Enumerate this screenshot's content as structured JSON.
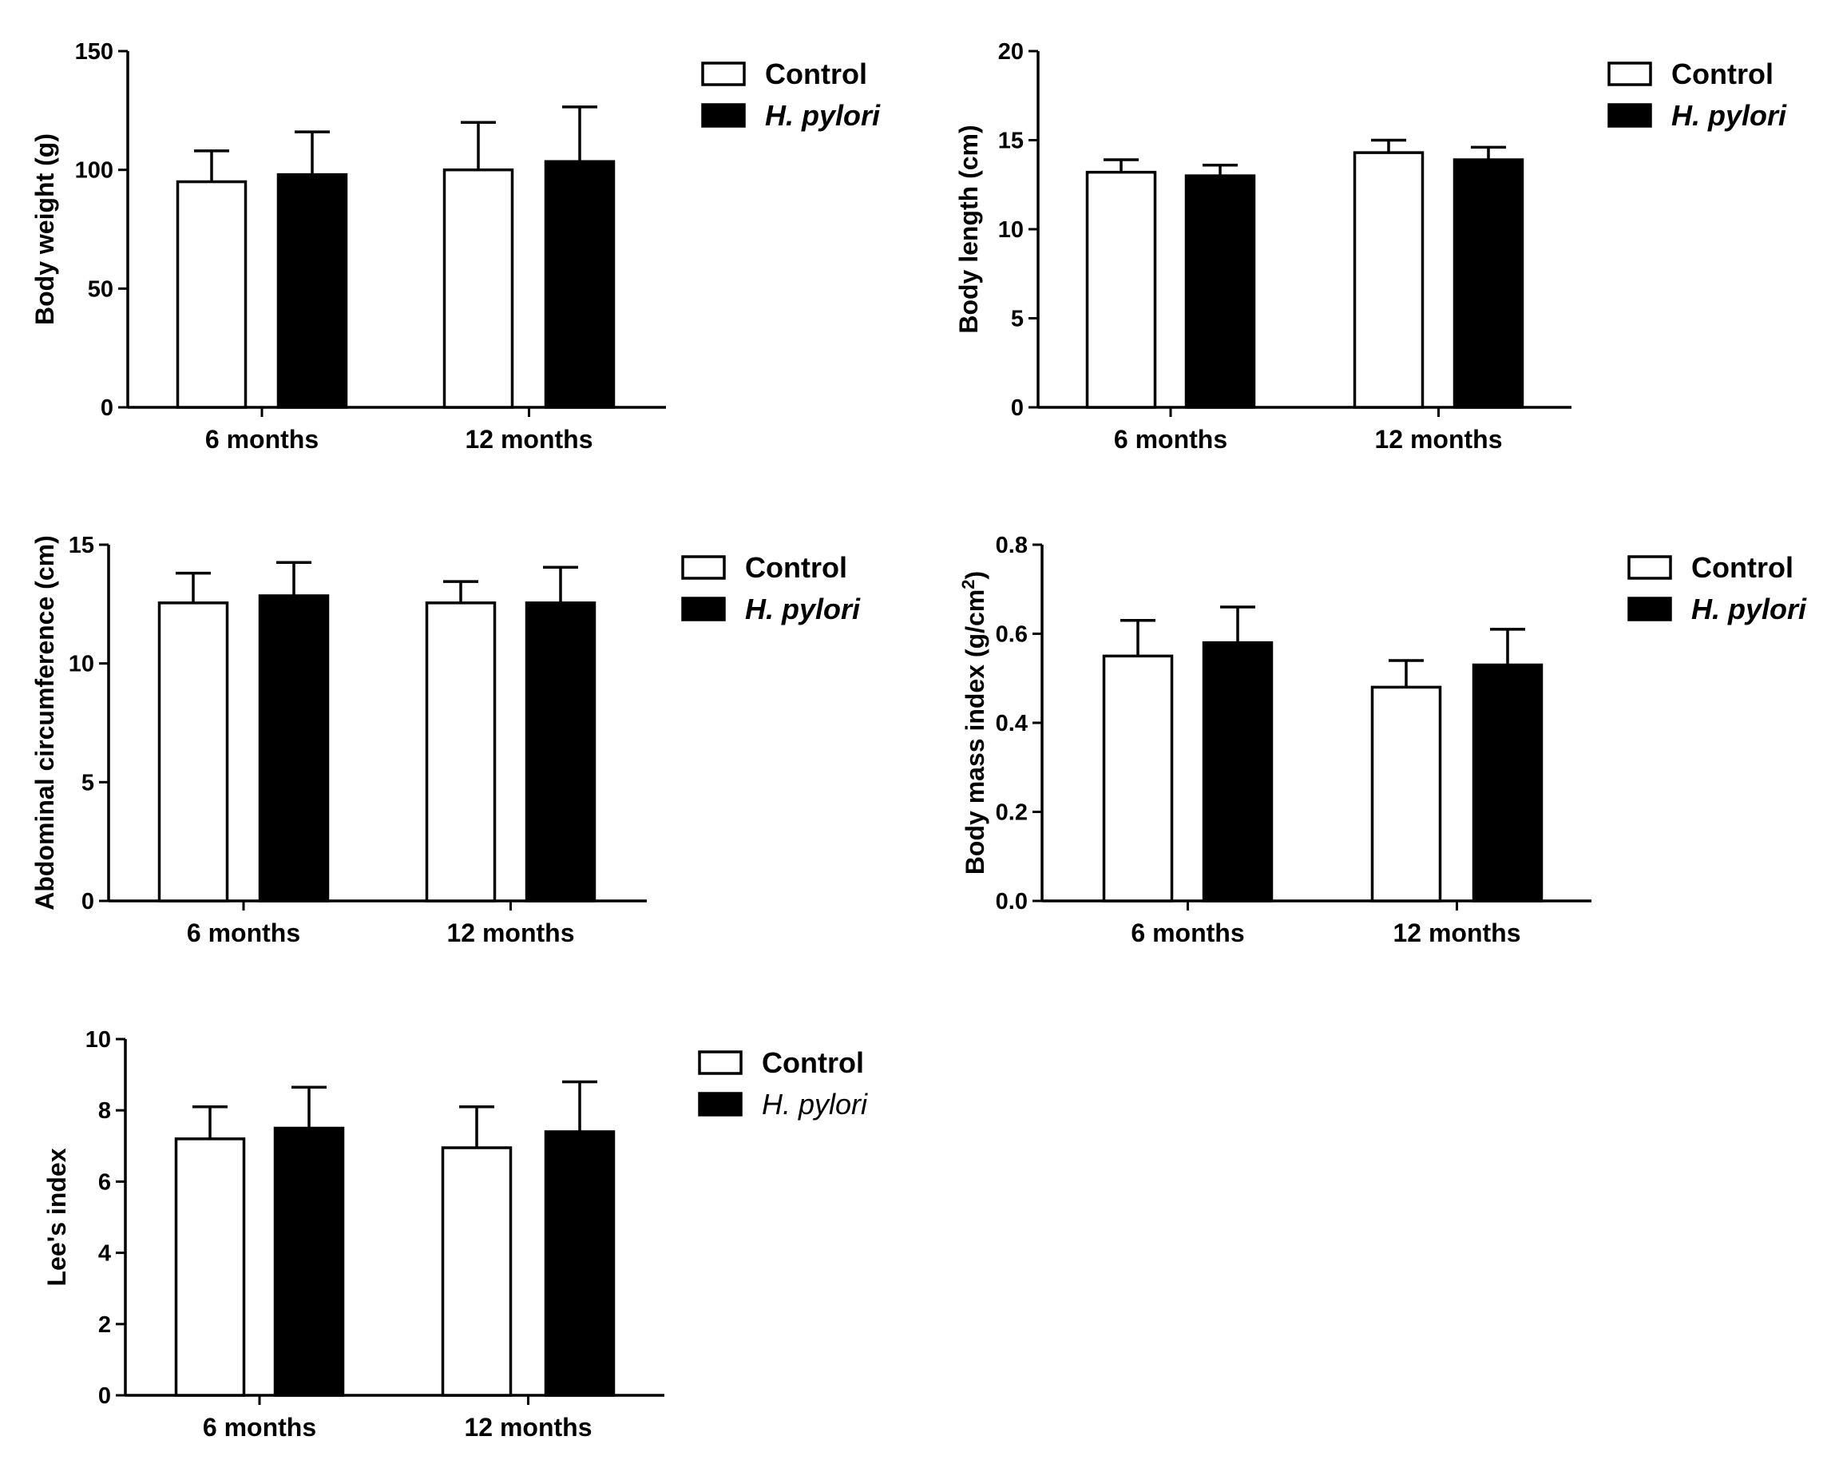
{
  "colors": {
    "control": "#ffffff",
    "h_pylori": "#000000",
    "stroke": "#000000"
  },
  "chart_data": [
    {
      "type": "bar",
      "ylabel": "Body weight (g)",
      "ylim": [
        0,
        150
      ],
      "yticks": [
        "0",
        "50",
        "100",
        "150"
      ],
      "yticks_values": [
        0,
        50,
        100,
        150
      ],
      "categories": [
        "6 months",
        "12 months"
      ],
      "series": [
        {
          "name": "Control",
          "values": [
            95,
            100
          ],
          "errors": [
            13,
            20
          ]
        },
        {
          "name": "H. pylori",
          "values": [
            98,
            103.5
          ],
          "errors": [
            18,
            23
          ]
        }
      ],
      "legend": {
        "labels": [
          "Control",
          "H. pylori"
        ],
        "position": "top-right",
        "italic_second": true,
        "bold_second": true
      }
    },
    {
      "type": "bar",
      "ylabel": "Body length (cm)",
      "ylim": [
        0,
        20
      ],
      "yticks": [
        "0",
        "5",
        "10",
        "15",
        "20"
      ],
      "yticks_values": [
        0,
        5,
        10,
        15,
        20
      ],
      "categories": [
        "6 months",
        "12 months"
      ],
      "series": [
        {
          "name": "Control",
          "values": [
            13.2,
            14.3
          ],
          "errors": [
            0.7,
            0.7
          ]
        },
        {
          "name": "H. pylori",
          "values": [
            13.0,
            13.9
          ],
          "errors": [
            0.6,
            0.7
          ]
        }
      ],
      "legend": {
        "labels": [
          "Control",
          "H. pylori"
        ],
        "position": "top-right",
        "italic_second": true,
        "bold_second": true
      }
    },
    {
      "type": "bar",
      "ylabel": "Abdominal circumference (cm)",
      "ylim": [
        0,
        15
      ],
      "yticks": [
        "0",
        "5",
        "10",
        "15"
      ],
      "yticks_values": [
        0,
        5,
        10,
        15
      ],
      "categories": [
        "6 months",
        "12 months"
      ],
      "series": [
        {
          "name": "Control",
          "values": [
            12.55,
            12.55
          ],
          "errors": [
            1.25,
            0.9
          ]
        },
        {
          "name": "H. pylori",
          "values": [
            12.85,
            12.55
          ],
          "errors": [
            1.4,
            1.5
          ]
        }
      ],
      "legend": {
        "labels": [
          "Control",
          "H. pylori"
        ],
        "position": "top-right",
        "italic_second": true,
        "bold_second": true
      }
    },
    {
      "type": "bar",
      "ylabel": "Body mass index (g/cm",
      "ylabel_superscript": "2",
      "ylabel_suffix": ")",
      "ylim": [
        0,
        0.8
      ],
      "yticks": [
        "0.0",
        "0.2",
        "0.4",
        "0.6",
        "0.8"
      ],
      "yticks_values": [
        0,
        0.2,
        0.4,
        0.6,
        0.8
      ],
      "categories": [
        "6 months",
        "12 months"
      ],
      "series": [
        {
          "name": "Control",
          "values": [
            0.55,
            0.48
          ],
          "errors": [
            0.08,
            0.06
          ]
        },
        {
          "name": "H. pylori",
          "values": [
            0.58,
            0.53
          ],
          "errors": [
            0.08,
            0.08
          ]
        }
      ],
      "legend": {
        "labels": [
          "Control",
          "H. pylori"
        ],
        "position": "top-right",
        "italic_second": true,
        "bold_second": true
      }
    },
    {
      "type": "bar",
      "ylabel": "Lee's index",
      "ylim": [
        0,
        10
      ],
      "yticks": [
        "0",
        "2",
        "4",
        "6",
        "8",
        "10"
      ],
      "yticks_values": [
        0,
        2,
        4,
        6,
        8,
        10
      ],
      "categories": [
        "6 months",
        "12 months"
      ],
      "series": [
        {
          "name": "Control",
          "values": [
            7.2,
            6.95
          ],
          "errors": [
            0.9,
            1.15
          ]
        },
        {
          "name": "H. pylori",
          "values": [
            7.5,
            7.4
          ],
          "errors": [
            1.15,
            1.4
          ]
        }
      ],
      "legend": {
        "labels": [
          "Control",
          "H. pylori"
        ],
        "position": "top-right",
        "italic_second": true,
        "bold_second": false
      }
    }
  ]
}
